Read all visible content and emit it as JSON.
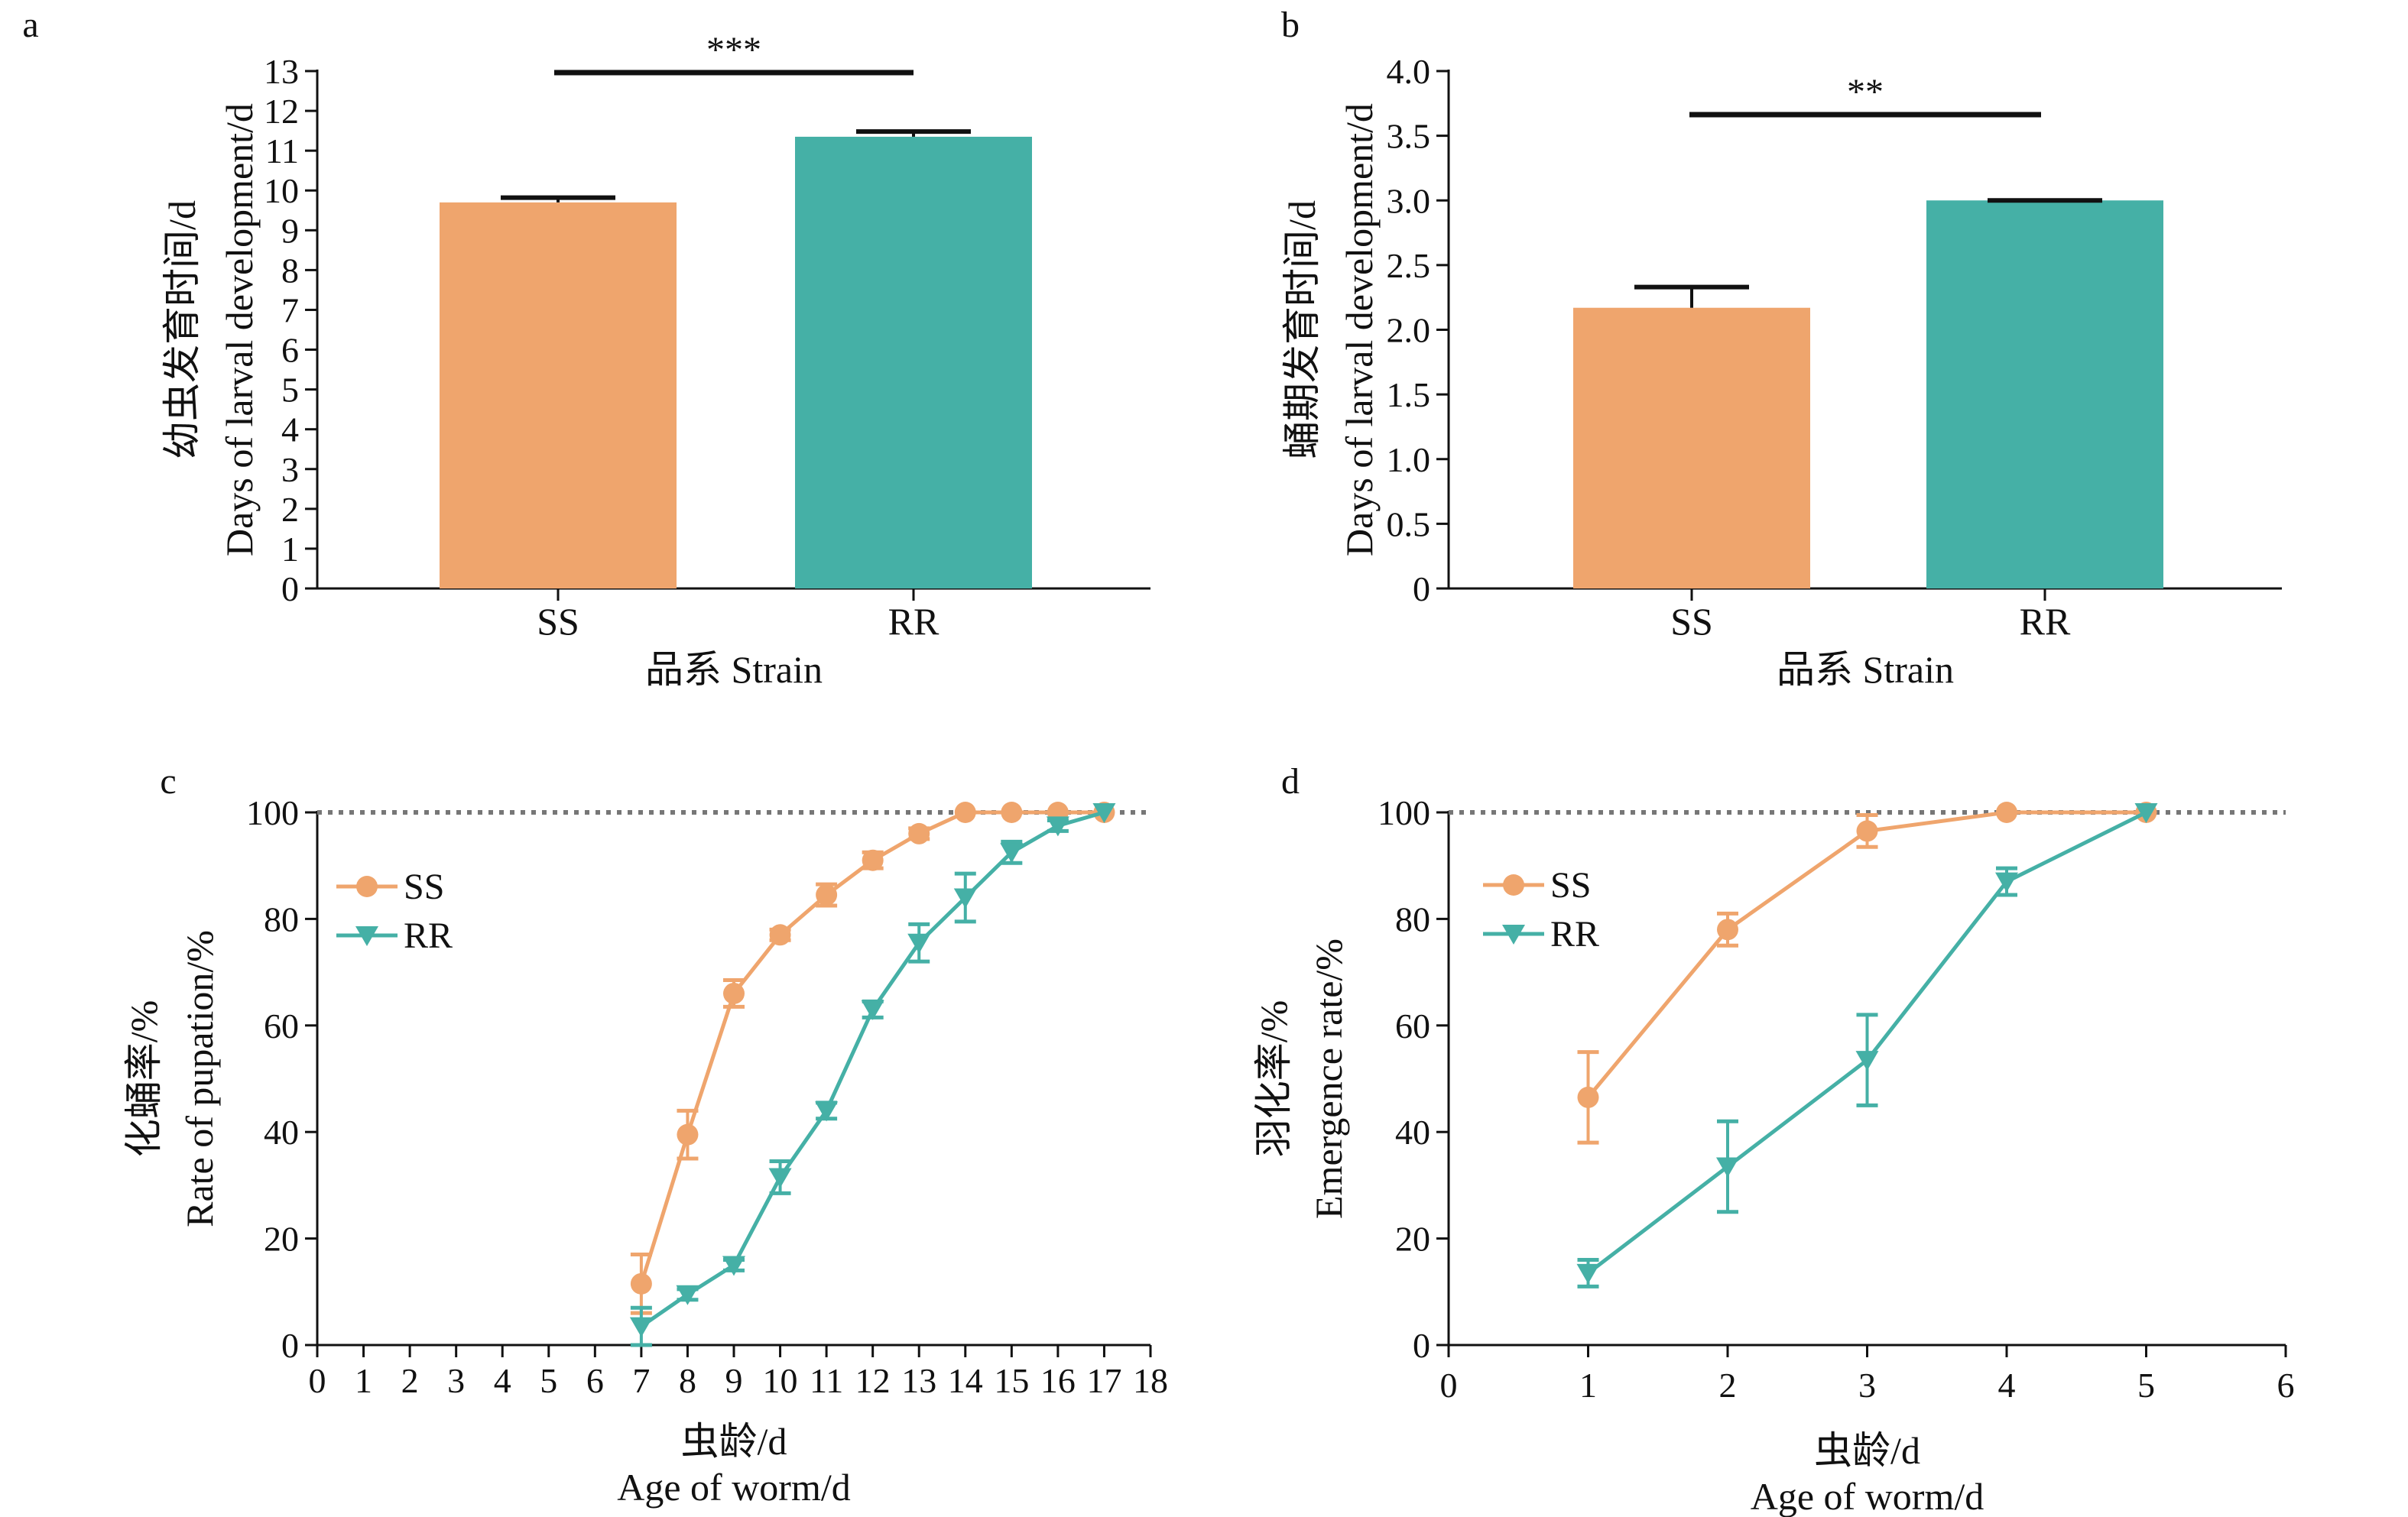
{
  "colors": {
    "SS": "#EFA56D",
    "RR": "#45B0A6",
    "axis": "#111111",
    "refline": "#777777"
  },
  "chart_data": [
    {
      "id": "a",
      "panel_label": "a",
      "type": "bar",
      "categories": [
        "SS",
        "RR"
      ],
      "values": [
        9.7,
        11.35
      ],
      "errors": [
        0.12,
        0.13
      ],
      "ylim": [
        0,
        13
      ],
      "yticks": [
        "0",
        "1",
        "2",
        "3",
        "4",
        "5",
        "6",
        "7",
        "8",
        "9",
        "10",
        "11",
        "12",
        "13"
      ],
      "ylabel_cn": "幼虫发育时间/d",
      "ylabel_en": "Days of larval development/d",
      "xlabel": "品系 Strain",
      "significance": "***"
    },
    {
      "id": "b",
      "panel_label": "b",
      "type": "bar",
      "categories": [
        "SS",
        "RR"
      ],
      "values": [
        2.17,
        3.0
      ],
      "errors": [
        0.16,
        0.0
      ],
      "ylim": [
        0,
        4.0
      ],
      "yticks": [
        "0",
        "0.5",
        "1.0",
        "1.5",
        "2.0",
        "2.5",
        "3.0",
        "3.5",
        "4.0"
      ],
      "ylabel_cn": "蛹期发育时间/d",
      "ylabel_en": "Days of larval development/d",
      "xlabel": "品系 Strain",
      "significance": "**"
    },
    {
      "id": "c",
      "panel_label": "c",
      "type": "line",
      "xlim": [
        0,
        18
      ],
      "ylim": [
        0,
        100
      ],
      "xticks": [
        "0",
        "1",
        "2",
        "3",
        "4",
        "5",
        "6",
        "7",
        "8",
        "9",
        "10",
        "11",
        "12",
        "13",
        "14",
        "15",
        "16",
        "17",
        "18"
      ],
      "yticks": [
        "0",
        "20",
        "40",
        "60",
        "80",
        "100"
      ],
      "ylabel_cn": "化蛹率/%",
      "ylabel_en": "Rate of pupation/%",
      "xlabel_cn": "虫龄/d",
      "xlabel_en": "Age of worm/d",
      "reference_line": 100,
      "legend": "top-left",
      "series": [
        {
          "name": "SS",
          "marker": "circle",
          "x": [
            7,
            8,
            9,
            10,
            11,
            12,
            13,
            14,
            15,
            16,
            17
          ],
          "y": [
            11.5,
            39.5,
            66,
            77,
            84.5,
            91,
            96,
            100,
            100,
            100,
            100
          ],
          "err": [
            5.5,
            4.5,
            2.5,
            1,
            2,
            1.5,
            1,
            0,
            0,
            0,
            0
          ]
        },
        {
          "name": "RR",
          "marker": "triangle-down",
          "x": [
            7,
            8,
            9,
            10,
            11,
            12,
            13,
            14,
            15,
            16,
            17
          ],
          "y": [
            3.5,
            9.5,
            15,
            31.5,
            44,
            63,
            75.5,
            84,
            92.5,
            97.5,
            100
          ],
          "err": [
            3.5,
            1,
            1,
            3,
            1.5,
            1.5,
            3.5,
            4.5,
            2,
            1,
            0
          ]
        }
      ]
    },
    {
      "id": "d",
      "panel_label": "d",
      "type": "line",
      "xlim": [
        0,
        6
      ],
      "ylim": [
        0,
        100
      ],
      "xticks": [
        "0",
        "1",
        "2",
        "3",
        "4",
        "5",
        "6"
      ],
      "yticks": [
        "0",
        "20",
        "40",
        "60",
        "80",
        "100"
      ],
      "ylabel_cn": "羽化率/%",
      "ylabel_en": "Emergence rate/%",
      "xlabel_cn": "虫龄/d",
      "xlabel_en": "Age of worm/d",
      "reference_line": 100,
      "legend": "top-left",
      "series": [
        {
          "name": "SS",
          "marker": "circle",
          "x": [
            1,
            2,
            3,
            4,
            5
          ],
          "y": [
            46.5,
            78,
            96.5,
            100,
            100
          ],
          "err": [
            8.5,
            3,
            3,
            0,
            0
          ]
        },
        {
          "name": "RR",
          "marker": "triangle-down",
          "x": [
            1,
            2,
            3,
            4,
            5
          ],
          "y": [
            13.5,
            33.5,
            53.5,
            87,
            100
          ],
          "err": [
            2.5,
            8.5,
            8.5,
            2.5,
            0
          ]
        }
      ]
    }
  ]
}
